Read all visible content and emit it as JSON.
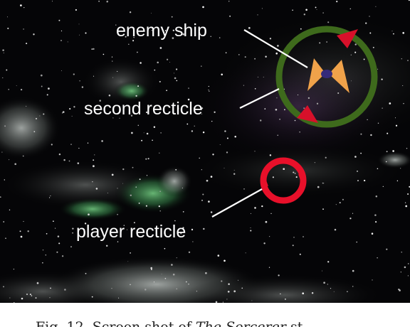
{
  "labels": {
    "enemy_ship": "enemy ship",
    "second_recticle": "second recticle",
    "player_recticle": "player recticle"
  },
  "caption": {
    "prefix": "Fig. 12.  Screen shot of ",
    "title": "The Sorcerer",
    "suffix": " st..."
  },
  "colors": {
    "background": "#050507",
    "second_recticle": "#3e6a1c",
    "recticle_arrows": "#d7102a",
    "player_recticle": "#e8102a",
    "enemy_wing": "#f0a24a",
    "enemy_core": "#352a7a",
    "nebula_green": "#4fbf6a",
    "label_text": "#ffffff"
  },
  "icons": {
    "enemy_ship": "enemy-ship-icon",
    "second_recticle": "second-recticle-icon",
    "player_recticle": "player-recticle-icon"
  }
}
